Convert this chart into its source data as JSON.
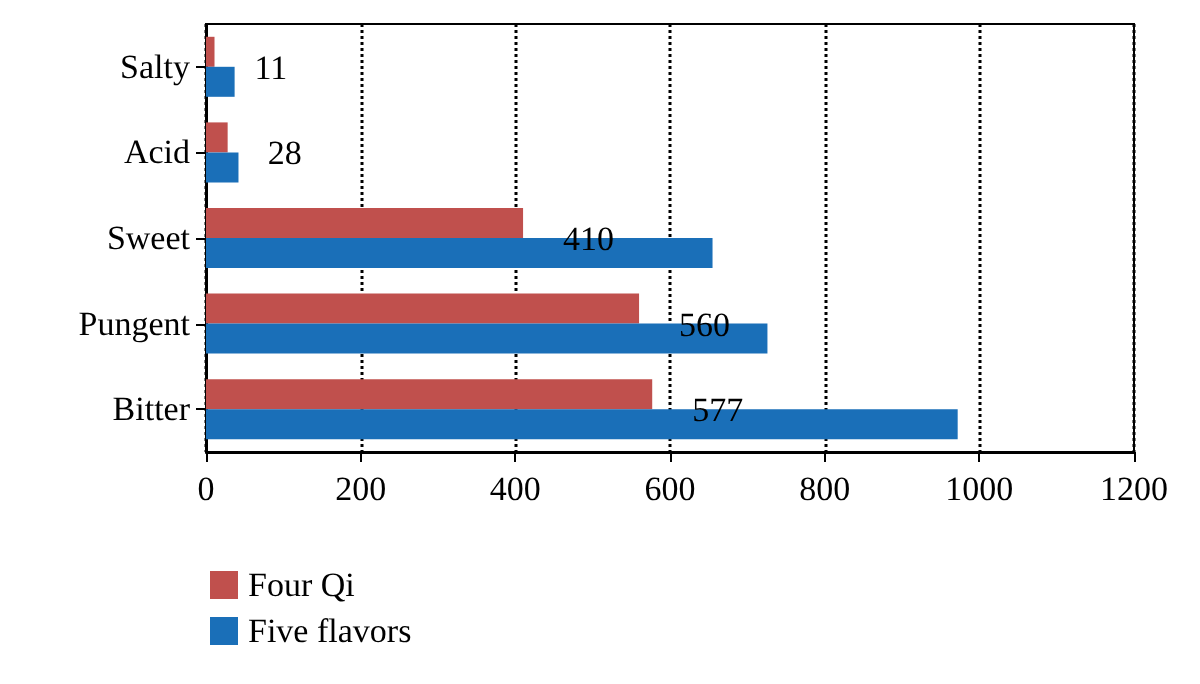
{
  "chart_data": {
    "type": "bar",
    "orientation": "horizontal",
    "categories": [
      "Salty",
      "Acid",
      "Sweet",
      "Pungent",
      "Bitter"
    ],
    "series": [
      {
        "name": "Four Qi",
        "color": "#c0504d",
        "values": [
          11,
          28,
          410,
          560,
          577
        ],
        "value_labels": [
          "11",
          "28",
          "410",
          "560",
          "577"
        ]
      },
      {
        "name": "Five flavors",
        "color": "#1a6fb8",
        "values": [
          37,
          42,
          655,
          726,
          972
        ]
      }
    ],
    "xlim": [
      0,
      1200
    ],
    "xticks": [
      0,
      200,
      400,
      600,
      800,
      1000,
      1200
    ],
    "grid": "x",
    "legend": "bottom left"
  }
}
